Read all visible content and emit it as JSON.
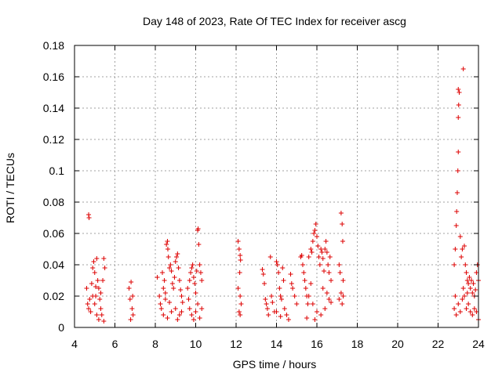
{
  "chart_data": {
    "type": "scatter",
    "title": "Day 148 of 2023, Rate Of TEC Index for receiver ascg",
    "xlabel": "GPS time / hours",
    "ylabel": "ROTI / TECUs",
    "xlim": [
      4,
      24
    ],
    "ylim": [
      0,
      0.18
    ],
    "x_ticks": [
      "4",
      "6",
      "8",
      "10",
      "12",
      "14",
      "16",
      "18",
      "20",
      "22",
      "24"
    ],
    "y_ticks": [
      "0",
      "0.02",
      "0.04",
      "0.06",
      "0.08",
      "0.1",
      "0.12",
      "0.14",
      "0.16",
      "0.18"
    ],
    "grid": true,
    "marker": "+",
    "marker_color": "#dd0000",
    "points": [
      [
        4.7,
        0.072
      ],
      [
        4.72,
        0.07
      ],
      [
        4.6,
        0.025
      ],
      [
        4.65,
        0.015
      ],
      [
        4.7,
        0.012
      ],
      [
        4.75,
        0.018
      ],
      [
        4.8,
        0.01
      ],
      [
        4.85,
        0.028
      ],
      [
        4.9,
        0.038
      ],
      [
        4.95,
        0.042
      ],
      [
        5.0,
        0.035
      ],
      [
        5.05,
        0.02
      ],
      [
        5.1,
        0.044
      ],
      [
        5.15,
        0.03
      ],
      [
        5.2,
        0.025
      ],
      [
        5.25,
        0.018
      ],
      [
        5.3,
        0.012
      ],
      [
        5.35,
        0.008
      ],
      [
        5.4,
        0.03
      ],
      [
        5.45,
        0.044
      ],
      [
        5.5,
        0.038
      ],
      [
        5.0,
        0.015
      ],
      [
        5.1,
        0.008
      ],
      [
        5.2,
        0.005
      ],
      [
        5.3,
        0.022
      ],
      [
        5.45,
        0.004
      ],
      [
        4.9,
        0.02
      ],
      [
        5.05,
        0.026
      ],
      [
        6.7,
        0.025
      ],
      [
        6.75,
        0.018
      ],
      [
        6.8,
        0.029
      ],
      [
        6.85,
        0.012
      ],
      [
        6.9,
        0.008
      ],
      [
        6.78,
        0.005
      ],
      [
        6.88,
        0.02
      ],
      [
        8.1,
        0.032
      ],
      [
        8.2,
        0.02
      ],
      [
        8.25,
        0.015
      ],
      [
        8.3,
        0.012
      ],
      [
        8.35,
        0.035
      ],
      [
        8.4,
        0.025
      ],
      [
        8.45,
        0.03
      ],
      [
        8.5,
        0.018
      ],
      [
        8.55,
        0.053
      ],
      [
        8.6,
        0.055
      ],
      [
        8.62,
        0.05
      ],
      [
        8.65,
        0.045
      ],
      [
        8.7,
        0.038
      ],
      [
        8.75,
        0.04
      ],
      [
        8.8,
        0.036
      ],
      [
        8.85,
        0.028
      ],
      [
        8.9,
        0.025
      ],
      [
        8.95,
        0.032
      ],
      [
        9.0,
        0.042
      ],
      [
        9.05,
        0.045
      ],
      [
        9.1,
        0.047
      ],
      [
        9.15,
        0.038
      ],
      [
        9.2,
        0.03
      ],
      [
        9.25,
        0.024
      ],
      [
        9.3,
        0.02
      ],
      [
        9.35,
        0.016
      ],
      [
        8.4,
        0.008
      ],
      [
        8.6,
        0.006
      ],
      [
        8.8,
        0.01
      ],
      [
        9.0,
        0.012
      ],
      [
        9.2,
        0.008
      ],
      [
        8.5,
        0.022
      ],
      [
        9.1,
        0.005
      ],
      [
        8.7,
        0.016
      ],
      [
        9.3,
        0.01
      ],
      [
        9.6,
        0.025
      ],
      [
        9.7,
        0.03
      ],
      [
        9.75,
        0.035
      ],
      [
        9.8,
        0.038
      ],
      [
        9.85,
        0.04
      ],
      [
        9.9,
        0.032
      ],
      [
        9.95,
        0.028
      ],
      [
        10.0,
        0.022
      ],
      [
        10.05,
        0.036
      ],
      [
        10.1,
        0.062
      ],
      [
        10.12,
        0.063
      ],
      [
        10.15,
        0.053
      ],
      [
        10.2,
        0.04
      ],
      [
        10.25,
        0.035
      ],
      [
        10.3,
        0.03
      ],
      [
        9.7,
        0.012
      ],
      [
        9.8,
        0.008
      ],
      [
        9.9,
        0.005
      ],
      [
        10.0,
        0.01
      ],
      [
        10.1,
        0.015
      ],
      [
        10.2,
        0.006
      ],
      [
        9.65,
        0.018
      ],
      [
        10.3,
        0.012
      ],
      [
        12.1,
        0.055
      ],
      [
        12.15,
        0.05
      ],
      [
        12.2,
        0.046
      ],
      [
        12.22,
        0.043
      ],
      [
        12.18,
        0.035
      ],
      [
        12.2,
        0.02
      ],
      [
        12.25,
        0.015
      ],
      [
        12.15,
        0.01
      ],
      [
        12.2,
        0.008
      ],
      [
        12.1,
        0.025
      ],
      [
        13.3,
        0.037
      ],
      [
        13.35,
        0.034
      ],
      [
        13.4,
        0.028
      ],
      [
        13.45,
        0.018
      ],
      [
        13.5,
        0.015
      ],
      [
        13.55,
        0.012
      ],
      [
        13.6,
        0.008
      ],
      [
        13.7,
        0.045
      ],
      [
        13.75,
        0.02
      ],
      [
        13.8,
        0.016
      ],
      [
        13.9,
        0.01
      ],
      [
        14.0,
        0.042
      ],
      [
        14.05,
        0.04
      ],
      [
        14.1,
        0.035
      ],
      [
        14.15,
        0.025
      ],
      [
        14.2,
        0.02
      ],
      [
        14.25,
        0.018
      ],
      [
        14.3,
        0.038
      ],
      [
        14.35,
        0.03
      ],
      [
        14.4,
        0.012
      ],
      [
        14.5,
        0.008
      ],
      [
        14.6,
        0.005
      ],
      [
        14.7,
        0.034
      ],
      [
        14.75,
        0.028
      ],
      [
        14.8,
        0.025
      ],
      [
        14.9,
        0.02
      ],
      [
        15.0,
        0.015
      ],
      [
        14.2,
        0.007
      ],
      [
        14.0,
        0.01
      ],
      [
        15.2,
        0.045
      ],
      [
        15.25,
        0.046
      ],
      [
        15.3,
        0.04
      ],
      [
        15.35,
        0.035
      ],
      [
        15.4,
        0.03
      ],
      [
        15.45,
        0.025
      ],
      [
        15.5,
        0.02
      ],
      [
        15.55,
        0.015
      ],
      [
        15.6,
        0.045
      ],
      [
        15.7,
        0.05
      ],
      [
        15.75,
        0.048
      ],
      [
        15.8,
        0.055
      ],
      [
        15.85,
        0.06
      ],
      [
        15.9,
        0.062
      ],
      [
        15.95,
        0.066
      ],
      [
        16.0,
        0.058
      ],
      [
        16.05,
        0.052
      ],
      [
        16.1,
        0.045
      ],
      [
        16.15,
        0.04
      ],
      [
        16.2,
        0.05
      ],
      [
        16.25,
        0.048
      ],
      [
        16.3,
        0.044
      ],
      [
        16.35,
        0.036
      ],
      [
        16.4,
        0.05
      ],
      [
        16.45,
        0.055
      ],
      [
        16.5,
        0.048
      ],
      [
        16.55,
        0.04
      ],
      [
        16.6,
        0.035
      ],
      [
        16.65,
        0.045
      ],
      [
        16.7,
        0.03
      ],
      [
        15.6,
        0.02
      ],
      [
        15.8,
        0.015
      ],
      [
        16.0,
        0.01
      ],
      [
        16.2,
        0.008
      ],
      [
        16.4,
        0.012
      ],
      [
        16.6,
        0.018
      ],
      [
        15.5,
        0.006
      ],
      [
        15.9,
        0.005
      ],
      [
        16.3,
        0.025
      ],
      [
        16.5,
        0.022
      ],
      [
        16.7,
        0.016
      ],
      [
        15.7,
        0.028
      ],
      [
        17.1,
        0.04
      ],
      [
        17.15,
        0.035
      ],
      [
        17.2,
        0.073
      ],
      [
        17.25,
        0.066
      ],
      [
        17.28,
        0.055
      ],
      [
        17.3,
        0.03
      ],
      [
        17.2,
        0.022
      ],
      [
        17.25,
        0.015
      ],
      [
        17.1,
        0.018
      ],
      [
        17.3,
        0.02
      ],
      [
        22.8,
        0.04
      ],
      [
        22.85,
        0.05
      ],
      [
        22.9,
        0.065
      ],
      [
        22.92,
        0.074
      ],
      [
        22.95,
        0.086
      ],
      [
        22.98,
        0.1
      ],
      [
        23.0,
        0.112
      ],
      [
        23.0,
        0.134
      ],
      [
        23.02,
        0.142
      ],
      [
        23.05,
        0.15
      ],
      [
        23.0,
        0.152
      ],
      [
        23.1,
        0.058
      ],
      [
        23.15,
        0.045
      ],
      [
        23.2,
        0.05
      ],
      [
        23.25,
        0.165
      ],
      [
        23.3,
        0.052
      ],
      [
        23.35,
        0.04
      ],
      [
        23.4,
        0.035
      ],
      [
        23.45,
        0.03
      ],
      [
        23.5,
        0.028
      ],
      [
        23.55,
        0.032
      ],
      [
        23.6,
        0.025
      ],
      [
        23.65,
        0.03
      ],
      [
        23.7,
        0.022
      ],
      [
        23.75,
        0.028
      ],
      [
        23.8,
        0.02
      ],
      [
        23.85,
        0.024
      ],
      [
        23.9,
        0.035
      ],
      [
        23.95,
        0.04
      ],
      [
        24.0,
        0.03
      ],
      [
        22.8,
        0.012
      ],
      [
        22.9,
        0.008
      ],
      [
        23.0,
        0.015
      ],
      [
        23.1,
        0.01
      ],
      [
        23.2,
        0.018
      ],
      [
        23.3,
        0.02
      ],
      [
        23.4,
        0.012
      ],
      [
        23.5,
        0.015
      ],
      [
        23.6,
        0.01
      ],
      [
        23.7,
        0.008
      ],
      [
        23.8,
        0.012
      ],
      [
        23.9,
        0.01
      ],
      [
        24.0,
        0.005
      ],
      [
        23.25,
        0.025
      ],
      [
        23.45,
        0.022
      ],
      [
        22.85,
        0.02
      ]
    ]
  }
}
